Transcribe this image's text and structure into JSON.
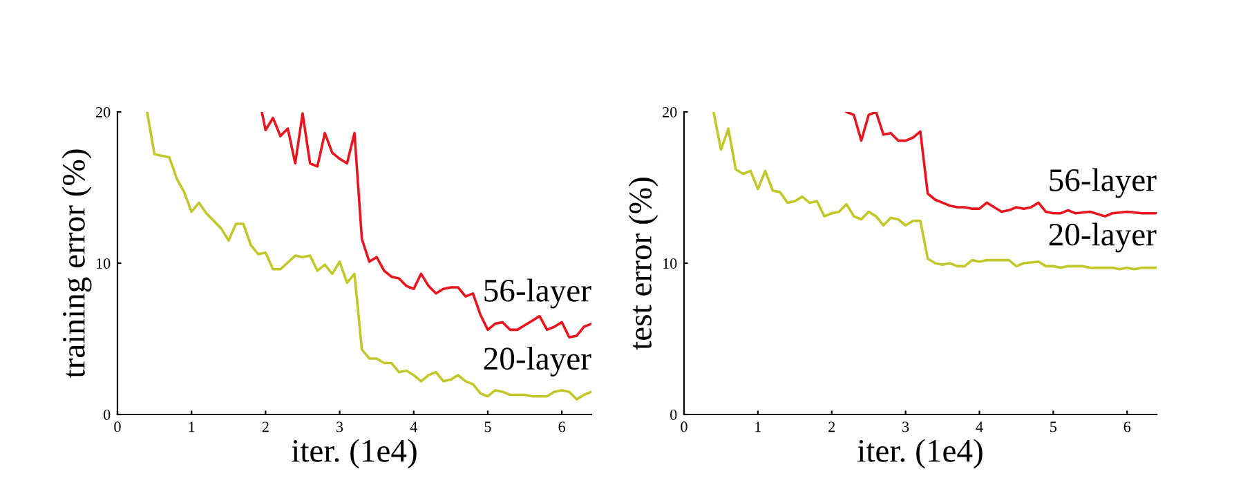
{
  "chart_data": [
    {
      "type": "line",
      "xlabel": "iter. (1e4)",
      "ylabel": "training error (%)",
      "xlim": [
        0,
        6.4
      ],
      "ylim": [
        0,
        20
      ],
      "xticks": [
        0,
        1,
        2,
        3,
        4,
        5,
        6
      ],
      "yticks": [
        0,
        10,
        20
      ],
      "grid": false,
      "legend": false,
      "series": [
        {
          "name": "56-layer",
          "color": "#e8141e",
          "x": [
            1.95,
            2.0,
            2.1,
            2.2,
            2.3,
            2.4,
            2.5,
            2.6,
            2.7,
            2.8,
            2.9,
            3.0,
            3.1,
            3.2,
            3.3,
            3.4,
            3.5,
            3.6,
            3.7,
            3.8,
            3.9,
            4.0,
            4.1,
            4.2,
            4.3,
            4.4,
            4.5,
            4.6,
            4.7,
            4.8,
            4.9,
            5.0,
            5.1,
            5.2,
            5.3,
            5.4,
            5.5,
            5.7,
            5.8,
            5.9,
            6.0,
            6.1,
            6.2,
            6.3,
            6.4
          ],
          "values": [
            20.0,
            18.8,
            19.6,
            18.4,
            18.9,
            16.6,
            19.9,
            16.6,
            16.4,
            18.6,
            17.3,
            16.9,
            16.6,
            18.6,
            11.6,
            10.1,
            10.4,
            9.5,
            9.1,
            9.0,
            8.5,
            8.3,
            9.3,
            8.5,
            8.0,
            8.3,
            8.4,
            8.4,
            7.8,
            8.0,
            6.6,
            5.6,
            6.0,
            6.1,
            5.6,
            5.6,
            5.9,
            6.5,
            5.6,
            5.8,
            6.1,
            5.1,
            5.2,
            5.8,
            6.0
          ]
        },
        {
          "name": "20-layer",
          "color": "#c2c82a",
          "x": [
            0.4,
            0.5,
            0.7,
            0.8,
            0.9,
            1.0,
            1.1,
            1.2,
            1.4,
            1.5,
            1.6,
            1.7,
            1.8,
            1.9,
            2.0,
            2.1,
            2.2,
            2.4,
            2.5,
            2.6,
            2.7,
            2.8,
            2.9,
            3.0,
            3.1,
            3.2,
            3.3,
            3.4,
            3.5,
            3.6,
            3.7,
            3.8,
            3.9,
            4.0,
            4.1,
            4.2,
            4.3,
            4.4,
            4.5,
            4.6,
            4.7,
            4.8,
            4.9,
            5.0,
            5.1,
            5.2,
            5.3,
            5.5,
            5.6,
            5.8,
            5.9,
            6.0,
            6.1,
            6.2,
            6.3,
            6.4
          ],
          "values": [
            20.0,
            17.2,
            17.0,
            15.6,
            14.7,
            13.4,
            14.0,
            13.3,
            12.3,
            11.5,
            12.6,
            12.6,
            11.2,
            10.6,
            10.7,
            9.6,
            9.6,
            10.5,
            10.4,
            10.5,
            9.5,
            9.9,
            9.3,
            10.1,
            8.7,
            9.3,
            4.3,
            3.7,
            3.7,
            3.4,
            3.4,
            2.8,
            2.9,
            2.6,
            2.2,
            2.6,
            2.8,
            2.2,
            2.3,
            2.6,
            2.2,
            2.0,
            1.4,
            1.2,
            1.6,
            1.5,
            1.3,
            1.3,
            1.2,
            1.2,
            1.5,
            1.6,
            1.5,
            1.0,
            1.3,
            1.5
          ]
        }
      ]
    },
    {
      "type": "line",
      "xlabel": "iter. (1e4)",
      "ylabel": "test error (%)",
      "xlim": [
        0,
        6.4
      ],
      "ylim": [
        0,
        20
      ],
      "xticks": [
        0,
        1,
        2,
        3,
        4,
        5,
        6
      ],
      "yticks": [
        0,
        10,
        20
      ],
      "grid": false,
      "legend": false,
      "series": [
        {
          "name": "56-layer",
          "color": "#e8141e",
          "x": [
            2.2,
            2.3,
            2.4,
            2.5,
            2.6,
            2.7,
            2.8,
            2.9,
            3.0,
            3.1,
            3.2,
            3.3,
            3.4,
            3.5,
            3.6,
            3.7,
            3.8,
            3.9,
            4.0,
            4.1,
            4.2,
            4.3,
            4.4,
            4.5,
            4.6,
            4.7,
            4.8,
            4.9,
            5.0,
            5.1,
            5.2,
            5.3,
            5.5,
            5.7,
            5.8,
            6.0,
            6.2,
            6.4
          ],
          "values": [
            20.0,
            19.8,
            18.1,
            19.8,
            20.0,
            18.5,
            18.6,
            18.1,
            18.1,
            18.3,
            18.7,
            14.6,
            14.2,
            14.0,
            13.8,
            13.7,
            13.7,
            13.6,
            13.6,
            14.0,
            13.7,
            13.4,
            13.5,
            13.7,
            13.6,
            13.7,
            14.0,
            13.4,
            13.3,
            13.3,
            13.5,
            13.3,
            13.4,
            13.1,
            13.3,
            13.4,
            13.3,
            13.3
          ]
        },
        {
          "name": "20-layer",
          "color": "#c2c82a",
          "x": [
            0.4,
            0.5,
            0.6,
            0.7,
            0.8,
            0.9,
            1.0,
            1.1,
            1.2,
            1.3,
            1.4,
            1.5,
            1.6,
            1.7,
            1.8,
            1.9,
            2.0,
            2.1,
            2.2,
            2.3,
            2.4,
            2.5,
            2.6,
            2.7,
            2.8,
            2.9,
            3.0,
            3.1,
            3.2,
            3.3,
            3.4,
            3.5,
            3.6,
            3.7,
            3.8,
            3.9,
            4.0,
            4.1,
            4.3,
            4.4,
            4.5,
            4.6,
            4.8,
            4.9,
            5.0,
            5.1,
            5.2,
            5.3,
            5.4,
            5.5,
            5.8,
            5.9,
            6.0,
            6.1,
            6.2,
            6.4
          ],
          "values": [
            20.0,
            17.5,
            18.9,
            16.2,
            15.9,
            16.1,
            14.9,
            16.1,
            14.8,
            14.7,
            14.0,
            14.1,
            14.4,
            14.0,
            14.1,
            13.1,
            13.3,
            13.4,
            13.9,
            13.1,
            12.9,
            13.4,
            13.1,
            12.5,
            13.0,
            12.9,
            12.5,
            12.8,
            12.8,
            10.3,
            10.0,
            9.9,
            10.0,
            9.8,
            9.8,
            10.2,
            10.1,
            10.2,
            10.2,
            10.2,
            9.8,
            10.0,
            10.1,
            9.8,
            9.8,
            9.7,
            9.8,
            9.8,
            9.8,
            9.7,
            9.7,
            9.6,
            9.7,
            9.6,
            9.7,
            9.7
          ]
        }
      ]
    }
  ]
}
